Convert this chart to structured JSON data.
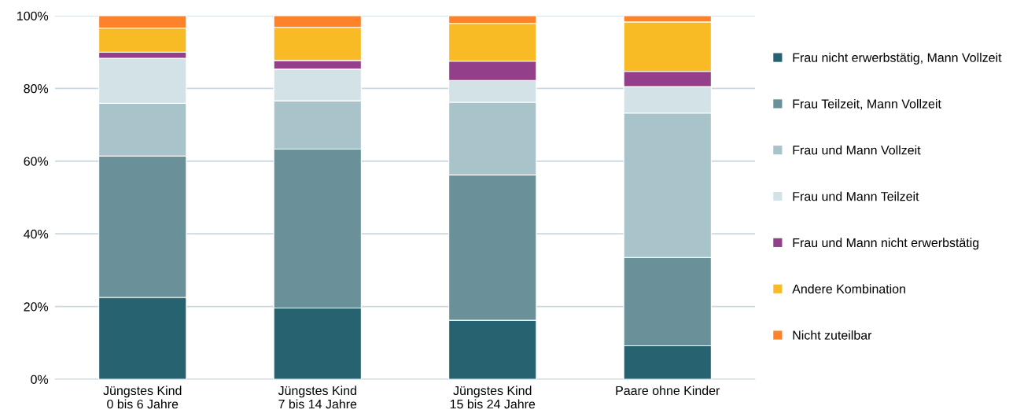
{
  "chart_data": {
    "type": "bar",
    "stacked": true,
    "categories": [
      "Jüngstes Kind\n0 bis 6 Jahre",
      "Jüngstes Kind\n7 bis 14 Jahre",
      "Jüngstes Kind\n15 bis 24 Jahre",
      "Paare ohne Kinder"
    ],
    "series": [
      {
        "name": "Frau nicht erwerbstätig, Mann Vollzeit",
        "color": "#26626f",
        "values": [
          22.5,
          19.6,
          16.2,
          9.2
        ]
      },
      {
        "name": "Frau Teilzeit, Mann Vollzeit",
        "color": "#6a9199",
        "values": [
          38.9,
          43.7,
          40.0,
          24.3
        ]
      },
      {
        "name": "Frau und Mann Vollzeit",
        "color": "#a8c4ca",
        "values": [
          14.5,
          13.3,
          20.0,
          39.7
        ]
      },
      {
        "name": "Frau und Mann Teilzeit",
        "color": "#d3e2e6",
        "values": [
          12.4,
          8.7,
          6.0,
          7.3
        ]
      },
      {
        "name": "Frau und Mann nicht erwerbstätig",
        "color": "#943f8a",
        "values": [
          1.7,
          2.4,
          5.3,
          4.2
        ]
      },
      {
        "name": "Andere Kombination",
        "color": "#f9bb25",
        "values": [
          6.6,
          9.1,
          10.4,
          13.6
        ]
      },
      {
        "name": "Nicht zuteilbar",
        "color": "#fe822a",
        "values": [
          3.4,
          3.2,
          2.1,
          1.7
        ]
      }
    ],
    "ylim": [
      0,
      100
    ],
    "yticks": [
      {
        "value": 0,
        "label": "0%"
      },
      {
        "value": 20,
        "label": "20%"
      },
      {
        "value": 40,
        "label": "40%"
      },
      {
        "value": 60,
        "label": "60%"
      },
      {
        "value": 80,
        "label": "80%"
      },
      {
        "value": 100,
        "label": "100%"
      }
    ],
    "grid": "y",
    "legend": "right"
  }
}
